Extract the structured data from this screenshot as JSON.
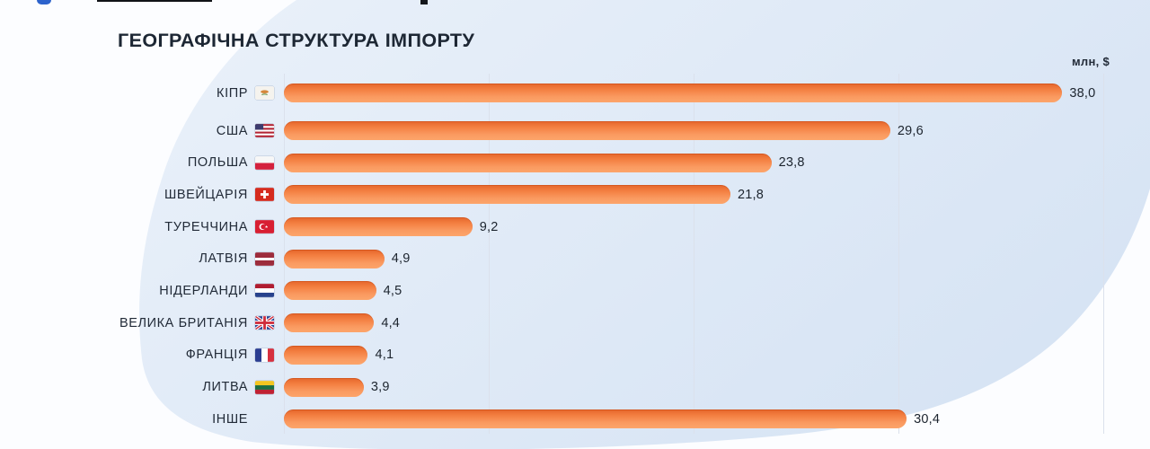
{
  "chart_data": {
    "type": "bar",
    "orientation": "horizontal",
    "title": "ГЕОГРАФІЧНА СТРУКТУРА ІМПОРТУ",
    "unit_label": "млн, $",
    "xlim": [
      0,
      40
    ],
    "gridlines_x": [
      0,
      10,
      20,
      30,
      40
    ],
    "grid": true,
    "legend": false,
    "bar_color": "#f5823f",
    "rows": [
      {
        "label": "КІПР",
        "flag": "cy",
        "value": 38.0,
        "value_label": "38,0"
      },
      {
        "label": "США",
        "flag": "us",
        "value": 29.6,
        "value_label": "29,6"
      },
      {
        "label": "ПОЛЬША",
        "flag": "pl",
        "value": 23.8,
        "value_label": "23,8"
      },
      {
        "label": "ШВЕЙЦАРІЯ",
        "flag": "ch",
        "value": 21.8,
        "value_label": "21,8"
      },
      {
        "label": "ТУРЕЧЧИНА",
        "flag": "tr",
        "value": 9.2,
        "value_label": "9,2"
      },
      {
        "label": "ЛАТВІЯ",
        "flag": "lv",
        "value": 4.9,
        "value_label": "4,9"
      },
      {
        "label": "НІДЕРЛАНДИ",
        "flag": "nl",
        "value": 4.5,
        "value_label": "4,5"
      },
      {
        "label": "ВЕЛИКА БРИТАНІЯ",
        "flag": "gb",
        "value": 4.4,
        "value_label": "4,4"
      },
      {
        "label": "ФРАНЦІЯ",
        "flag": "fr",
        "value": 4.1,
        "value_label": "4,1"
      },
      {
        "label": "ЛИТВА",
        "flag": "lt",
        "value": 3.9,
        "value_label": "3,9"
      },
      {
        "label": "ІНШЕ",
        "flag": null,
        "value": 30.4,
        "value_label": "30,4"
      }
    ]
  },
  "colors": {
    "background": "#fcfdff",
    "blob_light": "#e9f1fa",
    "blob_dark": "#d7e4f4",
    "bar_top": "#e5652b",
    "bar_bottom": "#fca56b",
    "gridline": "#dbe1ec",
    "text": "#1d2734"
  }
}
